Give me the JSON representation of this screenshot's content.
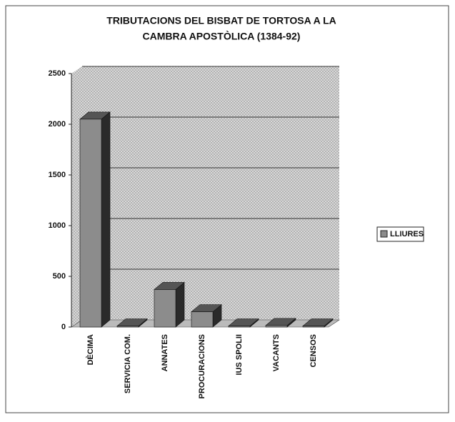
{
  "chart_data": {
    "type": "bar3d",
    "title_lines": [
      "TRIBUTACIONS DEL BISBAT DE TORTOSA A LA",
      "CAMBRA APOSTÒLICA (1384-92)"
    ],
    "categories": [
      "DÈCIMA",
      "SERVICIA COM.",
      "ANNATES",
      "PROCURACIONS",
      "IUS SPOLII",
      "VACANTS",
      "CENSOS"
    ],
    "series": [
      {
        "name": "LLIURES",
        "color": "#8c8c8c",
        "values": [
          2050,
          10,
          370,
          150,
          10,
          15,
          10
        ]
      }
    ],
    "ylim": [
      0,
      2500
    ],
    "yticks": [
      0,
      500,
      1000,
      1500,
      2000,
      2500
    ],
    "grid": true,
    "legend": "right"
  }
}
